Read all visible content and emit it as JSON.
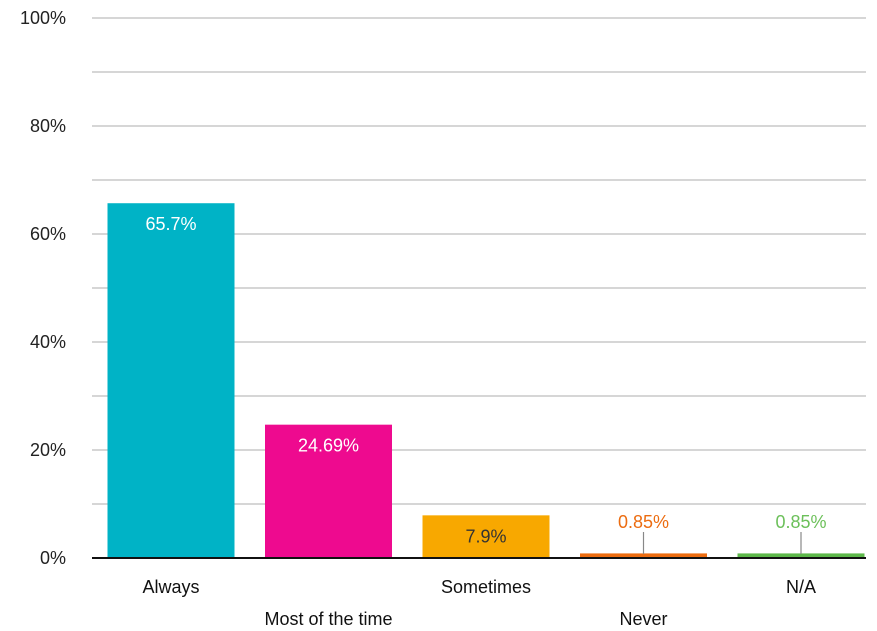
{
  "chart_data": {
    "type": "bar",
    "categories": [
      "Always",
      "Most of the time",
      "Sometimes",
      "Never",
      "N/A"
    ],
    "values": [
      65.7,
      24.69,
      7.9,
      0.85,
      0.85
    ],
    "value_labels": [
      "65.7%",
      "24.69%",
      "7.9%",
      "0.85%",
      "0.85%"
    ],
    "colors": [
      "#00b3c6",
      "#ee0a8f",
      "#f8a800",
      "#ec6c10",
      "#5db84a"
    ],
    "label_colors": [
      "#ffffff",
      "#ffffff",
      "#333333",
      "#ec6c10",
      "#6cc05a"
    ],
    "label_position": [
      "inside",
      "inside",
      "inside",
      "above-leader",
      "above-leader"
    ],
    "category_label_row": [
      "top",
      "bottom",
      "top",
      "bottom",
      "top"
    ],
    "ylim": [
      0,
      100
    ],
    "y_ticks": [
      0,
      20,
      40,
      60,
      80,
      100
    ],
    "y_tick_labels": [
      "0%",
      "20%",
      "40%",
      "60%",
      "80%",
      "100%"
    ],
    "minor_gridlines": [
      10,
      30,
      50,
      70,
      90
    ],
    "grid": true,
    "grid_color": "#d6d6d6",
    "axis_color": "#111111",
    "title": "",
    "xlabel": "",
    "ylabel": ""
  }
}
